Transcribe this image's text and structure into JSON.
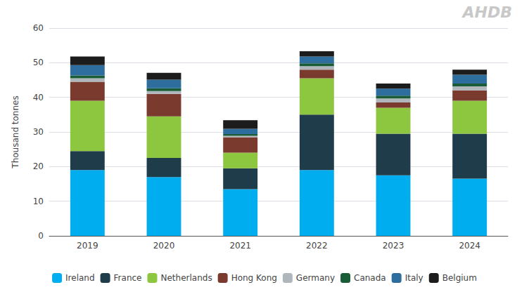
{
  "chart_data": {
    "type": "bar",
    "stacked": true,
    "categories": [
      "2019",
      "2020",
      "2021",
      "2022",
      "2023",
      "2024"
    ],
    "series": [
      {
        "name": "Ireland",
        "color": "#00ADEF",
        "values": [
          19.0,
          17.0,
          13.5,
          19.0,
          17.5,
          16.5
        ]
      },
      {
        "name": "France",
        "color": "#1F3C4B",
        "values": [
          5.5,
          5.5,
          6.0,
          16.0,
          12.0,
          13.0
        ]
      },
      {
        "name": "Netherlands",
        "color": "#8DC63F",
        "values": [
          14.5,
          12.0,
          4.5,
          10.5,
          7.5,
          9.5
        ]
      },
      {
        "name": "Hong Kong",
        "color": "#7B3A2E",
        "values": [
          5.5,
          6.5,
          4.5,
          2.5,
          1.5,
          3.0
        ]
      },
      {
        "name": "Germany",
        "color": "#B0B7BC",
        "values": [
          1.0,
          0.8,
          0.4,
          1.0,
          1.2,
          1.2
        ]
      },
      {
        "name": "Canada",
        "color": "#1A5C38",
        "values": [
          0.8,
          0.8,
          0.5,
          0.8,
          0.8,
          0.8
        ]
      },
      {
        "name": "Italy",
        "color": "#2E6E9E",
        "values": [
          3.0,
          2.5,
          1.5,
          2.0,
          2.0,
          2.5
        ]
      },
      {
        "name": "Belgium",
        "color": "#1C1C1C",
        "values": [
          2.5,
          2.0,
          2.5,
          1.5,
          1.5,
          1.5
        ]
      }
    ],
    "ylabel": "Thousand tonnes",
    "ylim": [
      0,
      60
    ],
    "yticks": [
      0,
      10,
      20,
      30,
      40,
      50,
      60
    ],
    "grid": true,
    "legend": "bottom",
    "annotations": [
      "AHDB"
    ]
  }
}
